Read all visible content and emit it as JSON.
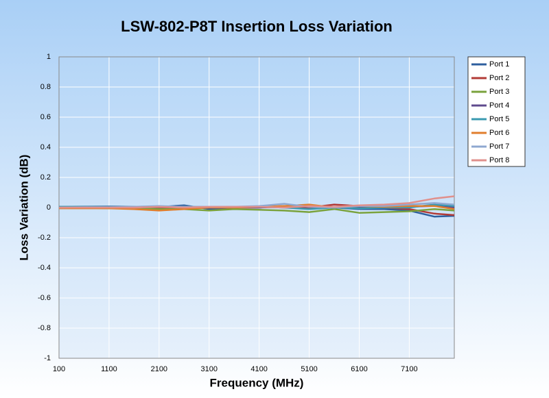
{
  "chart_data": {
    "type": "line",
    "title": "LSW-802-P8T Insertion Loss Variation",
    "x_label": "Frequency (MHz)",
    "y_label": "Loss Variation (dB)",
    "xlim": [
      100,
      8000
    ],
    "xticks": [
      100,
      1100,
      2100,
      3100,
      4100,
      5100,
      6100,
      7100
    ],
    "ylim": [
      -1,
      1
    ],
    "yticks": [
      1,
      0.8,
      0.6,
      0.4,
      0.2,
      0,
      -0.2,
      -0.4,
      -0.6,
      -0.8,
      -1
    ],
    "grid": true,
    "legend": "right",
    "x": [
      100,
      600,
      1100,
      1600,
      2100,
      2600,
      3100,
      3600,
      4100,
      4600,
      5100,
      5600,
      6100,
      6600,
      7100,
      7600,
      8000
    ],
    "series": [
      {
        "name": "Port 1",
        "color": "#2e5f9e",
        "values": [
          0.005,
          0.006,
          0.007,
          0.005,
          0.004,
          0.015,
          -0.01,
          0.0,
          0.005,
          0.0,
          -0.005,
          0.0,
          -0.01,
          -0.01,
          -0.02,
          -0.06,
          -0.055
        ]
      },
      {
        "name": "Port 2",
        "color": "#b23a36",
        "values": [
          0.0,
          0.0,
          -0.003,
          -0.005,
          0.0,
          -0.005,
          0.0,
          0.0,
          0.0,
          0.005,
          0.0,
          0.02,
          0.01,
          0.0,
          -0.01,
          -0.04,
          -0.05
        ]
      },
      {
        "name": "Port 3",
        "color": "#7aa23c",
        "values": [
          0.0,
          -0.002,
          -0.005,
          -0.005,
          -0.01,
          -0.01,
          -0.02,
          -0.01,
          -0.015,
          -0.02,
          -0.03,
          -0.01,
          -0.035,
          -0.03,
          -0.025,
          -0.01,
          -0.02
        ]
      },
      {
        "name": "Port 4",
        "color": "#5f4a8e",
        "values": [
          0.0,
          0.0,
          0.002,
          0.0,
          0.005,
          0.0,
          0.0,
          0.002,
          0.0,
          0.01,
          0.005,
          0.0,
          0.005,
          0.0,
          0.005,
          0.01,
          0.0
        ]
      },
      {
        "name": "Port 5",
        "color": "#3a9ab0",
        "values": [
          0.005,
          0.005,
          0.004,
          0.004,
          0.005,
          0.005,
          0.004,
          0.005,
          0.005,
          0.0,
          -0.01,
          0.0,
          -0.005,
          0.0,
          0.0,
          0.02,
          0.01
        ]
      },
      {
        "name": "Port 6",
        "color": "#e07e2c",
        "values": [
          -0.005,
          -0.005,
          -0.005,
          -0.01,
          -0.02,
          -0.01,
          0.0,
          0.0,
          0.005,
          0.01,
          0.02,
          0.0,
          0.01,
          0.005,
          0.01,
          0.01,
          -0.01
        ]
      },
      {
        "name": "Port 7",
        "color": "#8fa8d0",
        "values": [
          0.0,
          0.002,
          0.002,
          0.005,
          0.01,
          0.005,
          0.005,
          0.005,
          0.01,
          0.025,
          0.005,
          0.0,
          0.01,
          0.01,
          0.02,
          0.03,
          0.02
        ]
      },
      {
        "name": "Port 8",
        "color": "#e0908c",
        "values": [
          0.0,
          0.0,
          0.0,
          0.0,
          0.005,
          0.0,
          0.005,
          0.005,
          0.005,
          0.0,
          0.01,
          0.005,
          0.015,
          0.02,
          0.03,
          0.06,
          0.075
        ]
      }
    ]
  }
}
